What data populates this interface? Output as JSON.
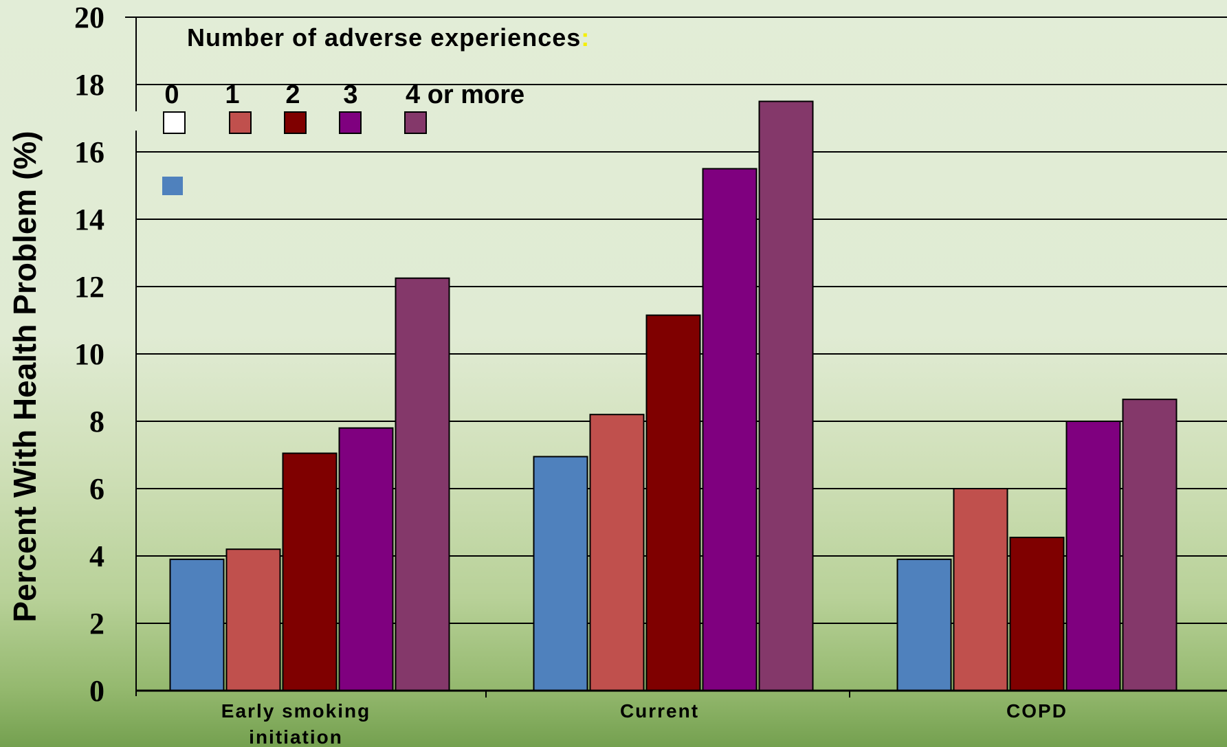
{
  "chart_data": {
    "type": "bar",
    "ylabel": "Percent With Health Problem  (%)",
    "ylim": [
      0,
      20
    ],
    "yticks": [
      "0",
      "2",
      "4",
      "6",
      "8",
      "10",
      "12",
      "14",
      "16",
      "18",
      "20"
    ],
    "categories": [
      [
        "Early smoking",
        "initiation"
      ],
      [
        "Current"
      ],
      [
        "COPD"
      ]
    ],
    "legend": {
      "title": "Number of adverse experiences",
      "title_suffix": ":",
      "placement": "top-left"
    },
    "grid": true,
    "series": [
      {
        "name": "0",
        "color": "#4f81bd",
        "values": [
          3.9,
          6.95,
          3.9
        ]
      },
      {
        "name": "1",
        "color": "#c0504d",
        "values": [
          4.2,
          8.2,
          6.0
        ]
      },
      {
        "name": "2",
        "color": "#7f0000",
        "values": [
          7.05,
          11.15,
          4.55
        ]
      },
      {
        "name": "3",
        "color": "#7f007f",
        "values": [
          7.8,
          15.5,
          8.0
        ]
      },
      {
        "name": "4 or more",
        "color": "#84386a",
        "values": [
          12.25,
          17.5,
          8.65
        ]
      }
    ]
  }
}
